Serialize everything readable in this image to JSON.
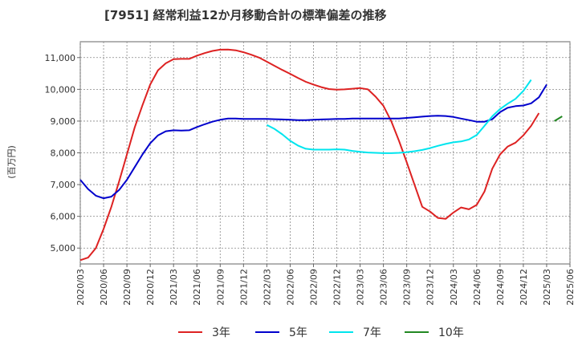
{
  "chart_data": {
    "type": "line",
    "title": "[7951]  経常利益12か月移動合計の標準偏差の推移",
    "ylabel": "(百万円)",
    "xlabel": "",
    "ylim": [
      4500,
      11500
    ],
    "yticks": [
      5000,
      6000,
      7000,
      8000,
      9000,
      10000,
      11000
    ],
    "ytick_labels": [
      "5,000",
      "6,000",
      "7,000",
      "8,000",
      "9,000",
      "10,000",
      "11,000"
    ],
    "xlim": [
      0,
      63
    ],
    "xtick_labels": [
      "2020/03",
      "2020/06",
      "2020/09",
      "2020/12",
      "2021/03",
      "2021/06",
      "2021/09",
      "2021/12",
      "2022/03",
      "2022/06",
      "2022/09",
      "2022/12",
      "2023/03",
      "2023/06",
      "2023/09",
      "2023/12",
      "2024/03",
      "2024/06",
      "2024/09",
      "2024/12",
      "2025/03",
      "2025/06"
    ],
    "grid": true,
    "legend_position": "bottom",
    "series": [
      {
        "name": "3年",
        "color": "#dd2222",
        "start": 0,
        "values": [
          4620,
          4700,
          5000,
          5600,
          6300,
          7100,
          7950,
          8800,
          9500,
          10150,
          10600,
          10820,
          10950,
          10960,
          10960,
          11060,
          11140,
          11210,
          11250,
          11255,
          11230,
          11170,
          11090,
          11000,
          10870,
          10740,
          10610,
          10490,
          10360,
          10240,
          10150,
          10070,
          10010,
          9990,
          10000,
          10020,
          10040,
          10000,
          9770,
          9480,
          9000,
          8380,
          7700,
          7000,
          6300,
          6150,
          5950,
          5920,
          6120,
          6280,
          6220,
          6360,
          6780,
          7500,
          7950,
          8200,
          8320,
          8550,
          8850,
          9250
        ]
      },
      {
        "name": "5年",
        "color": "#0000cc",
        "start": 0,
        "values": [
          7150,
          6860,
          6650,
          6570,
          6620,
          6830,
          7150,
          7550,
          7950,
          8300,
          8550,
          8680,
          8710,
          8700,
          8710,
          8810,
          8900,
          8980,
          9040,
          9080,
          9080,
          9070,
          9070,
          9070,
          9070,
          9060,
          9050,
          9040,
          9030,
          9030,
          9040,
          9050,
          9060,
          9070,
          9070,
          9080,
          9080,
          9080,
          9080,
          9080,
          9080,
          9080,
          9100,
          9120,
          9140,
          9160,
          9170,
          9160,
          9130,
          9080,
          9030,
          8980,
          8980,
          9060,
          9280,
          9420,
          9470,
          9490,
          9560,
          9750,
          10150
        ]
      },
      {
        "name": "7年",
        "color": "#00e5ee",
        "start": 24,
        "values": [
          8880,
          8750,
          8580,
          8380,
          8230,
          8130,
          8100,
          8100,
          8100,
          8110,
          8100,
          8060,
          8030,
          8010,
          8000,
          7990,
          7990,
          8000,
          8020,
          8050,
          8090,
          8150,
          8220,
          8280,
          8330,
          8360,
          8420,
          8560,
          8850,
          9150,
          9380,
          9550,
          9700,
          9950,
          10300
        ]
      },
      {
        "name": "10年",
        "color": "#228822",
        "start": 61,
        "values": [
          9000,
          9150
        ]
      }
    ]
  }
}
